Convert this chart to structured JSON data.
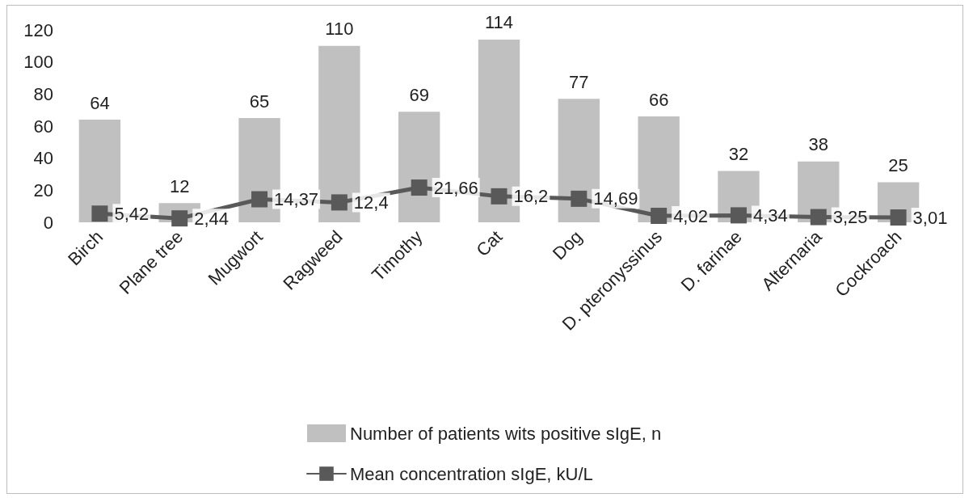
{
  "chart_data": {
    "type": "bar",
    "categories": [
      "Birch",
      "Plane tree",
      "Mugwort",
      "Ragweed",
      "Timothy",
      "Cat",
      "Dog",
      "D. pteronyssinus",
      "D. farinae",
      "Alternaria",
      "Cockroach"
    ],
    "series": [
      {
        "name": "Number of patients wits positive sIgE, n",
        "color": "#c0c0c0",
        "values": [
          64,
          12,
          65,
          110,
          69,
          114,
          77,
          66,
          32,
          38,
          25
        ],
        "value_labels": [
          "64",
          "12",
          "65",
          "110",
          "69",
          "114",
          "77",
          "66",
          "32",
          "38",
          "25"
        ]
      },
      {
        "name": "Mean concentration sIgE, kU/L",
        "type": "line",
        "color": "#595959",
        "marker": "square",
        "line_style": "solid",
        "values": [
          5.42,
          2.44,
          14.37,
          12.4,
          21.66,
          16.2,
          14.69,
          4.02,
          4.34,
          3.25,
          3.01
        ],
        "value_labels": [
          "5,42",
          "2,44",
          "14,37",
          "12,4",
          "21,66",
          "16,2",
          "14,69",
          "4,02",
          "4,34",
          "3,25",
          "3,01"
        ]
      }
    ],
    "ylim": [
      0,
      120
    ],
    "yticks": [
      0,
      20,
      40,
      60,
      80,
      100,
      120
    ],
    "grid": false,
    "legend": "bottom"
  }
}
